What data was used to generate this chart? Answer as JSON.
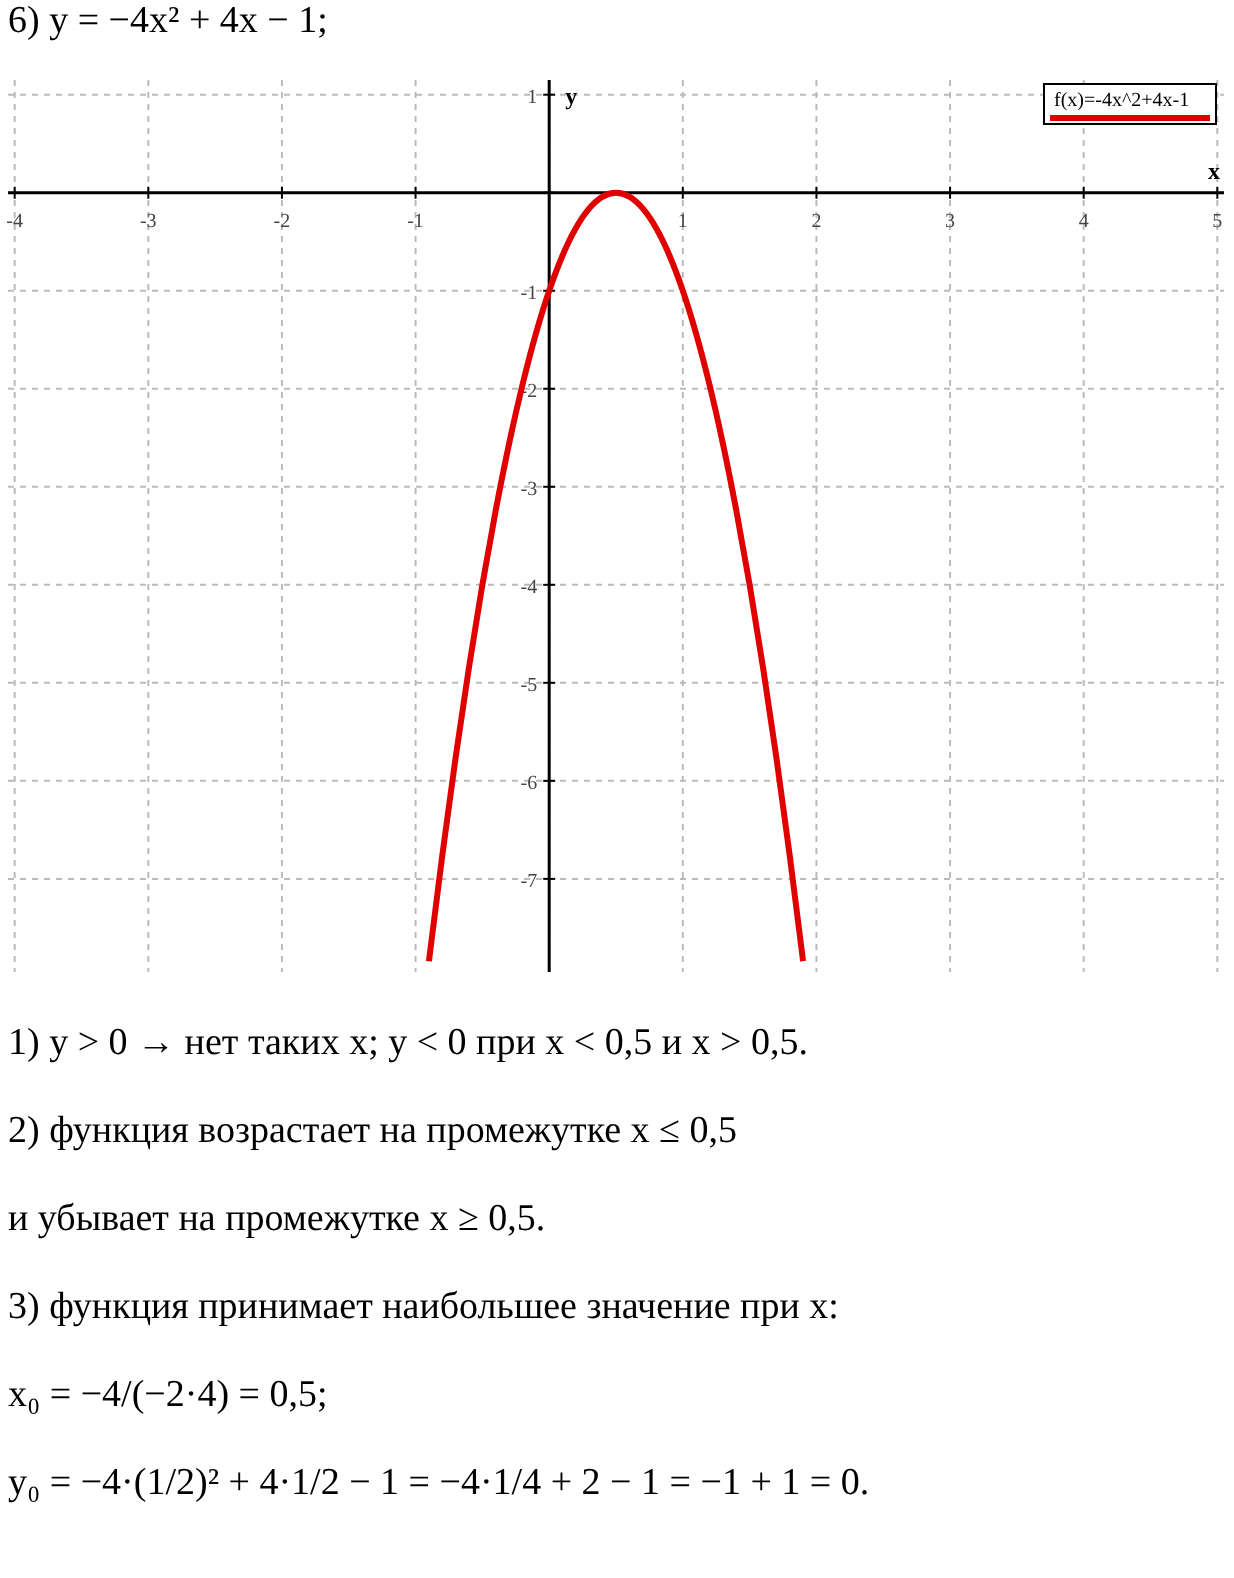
{
  "chart_data": {
    "type": "line",
    "title": "6) y = −4x² + 4x − 1;",
    "xlabel": "x",
    "ylabel": "y",
    "xlim": [
      -4.05,
      5.05
    ],
    "ylim": [
      -7.95,
      1.15
    ],
    "xticks": [
      -4,
      -3,
      -2,
      -1,
      {
        "value": 0,
        "label": null
      },
      1,
      2,
      3,
      4,
      5
    ],
    "yticks": [
      1,
      {
        "value": 0,
        "label": null
      },
      -1,
      -2,
      -3,
      -4,
      -5,
      -6,
      -7
    ],
    "grid": true,
    "legend": "top right",
    "series": [
      {
        "name": "f(x)=-4x^2+4x-1",
        "color": "#e00000",
        "x": [
          -0.9,
          -0.8,
          -0.7,
          -0.6,
          -0.5,
          -0.4,
          -0.3,
          -0.2,
          -0.1,
          0,
          0.1,
          0.2,
          0.3,
          0.4,
          0.5,
          0.6,
          0.7,
          0.8,
          0.9,
          1,
          1.1,
          1.2,
          1.3,
          1.4,
          1.5,
          1.6,
          1.7,
          1.8,
          1.9
        ],
        "values": [
          -7.84,
          -6.76,
          -5.76,
          -4.84,
          -4,
          -3.24,
          -2.56,
          -1.96,
          -1.44,
          -1,
          -0.64,
          -0.36,
          -0.16,
          -0.04,
          0,
          -0.04,
          -0.16,
          -0.36,
          -0.64,
          -1,
          -1.44,
          -1.96,
          -2.56,
          -3.24,
          -4,
          -4.84,
          -5.76,
          -6.76,
          -7.84
        ]
      }
    ],
    "annotations": [
      "1) y > 0 → нет таких x;    y < 0 при x < 0,5 и x > 0,5.",
      "2) функция возрастает на промежутке x ≤ 0,5",
      "и убывает на промежутке x ≥ 0,5.",
      "3) функция принимает наибольшее значение при x:",
      "x₀ = −4/(−2·4) = 0,5;",
      "y₀ = −4·(1/2)² + 4·1/2 − 1 = −4·1/4 + 2 − 1 = −1 + 1 = 0."
    ]
  }
}
